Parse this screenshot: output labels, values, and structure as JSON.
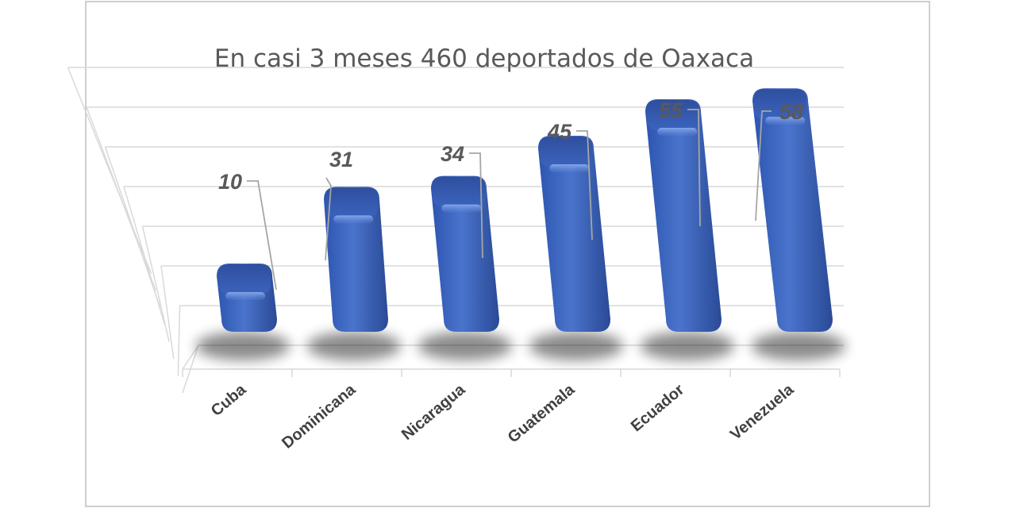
{
  "chart_data": {
    "type": "bar",
    "title": "En casi 3 meses 460 deportados de Oaxaca",
    "categories": [
      "Cuba",
      "Dominicana",
      "Nicaragua",
      "Guatemala",
      "Ecuador",
      "Venezuela"
    ],
    "values": [
      10,
      31,
      34,
      45,
      55,
      58
    ],
    "ylim": [
      0,
      70
    ],
    "grid": true,
    "legend": "none",
    "data_labels": true,
    "style": "3d-column",
    "colors": {
      "bar": "#3a62bb",
      "bar_dark": "#2a4a96",
      "bar_light": "#6f94e0",
      "grid": "#d9d9d9",
      "text": "#595959",
      "border": "#bfbfbf"
    }
  }
}
